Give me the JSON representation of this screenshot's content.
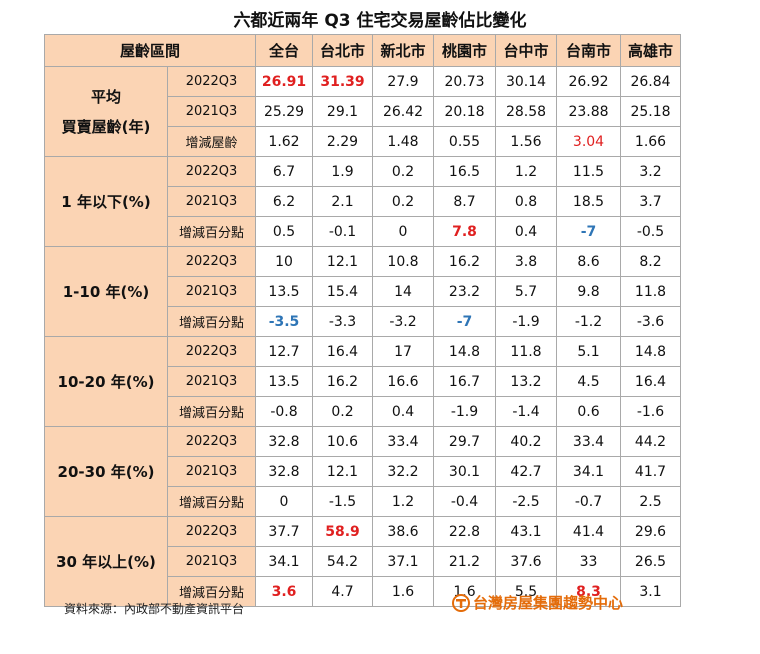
{
  "title": "六都近兩年 Q3 住宅交易屋齡佔比變化",
  "header": [
    "屋齡區間",
    "全台",
    "台北市",
    "新北市",
    "桃園市",
    "台中市",
    "台南市",
    "高雄市"
  ],
  "groups": [
    {
      "label_lines": [
        "平均",
        "買賣屋齡(年)"
      ],
      "rows": [
        {
          "label": "2022Q3",
          "values": [
            "26.91",
            "31.39",
            "27.9",
            "20.73",
            "30.14",
            "26.92",
            "26.84"
          ],
          "hl": [
            "red",
            "red",
            "",
            "",
            "",
            "",
            ""
          ]
        },
        {
          "label": "2021Q3",
          "values": [
            "25.29",
            "29.1",
            "26.42",
            "20.18",
            "28.58",
            "23.88",
            "25.18"
          ],
          "hl": [
            "",
            "",
            "",
            "",
            "",
            "",
            ""
          ]
        },
        {
          "label": "增減屋齡",
          "values": [
            "1.62",
            "2.29",
            "1.48",
            "0.55",
            "1.56",
            "3.04",
            "1.66"
          ],
          "hl": [
            "",
            "",
            "",
            "",
            "",
            "redn",
            ""
          ]
        }
      ]
    },
    {
      "label_lines": [
        "1 年以下(%)"
      ],
      "rows": [
        {
          "label": "2022Q3",
          "values": [
            "6.7",
            "1.9",
            "0.2",
            "16.5",
            "1.2",
            "11.5",
            "3.2"
          ],
          "hl": [
            "",
            "",
            "",
            "",
            "",
            "",
            ""
          ]
        },
        {
          "label": "2021Q3",
          "values": [
            "6.2",
            "2.1",
            "0.2",
            "8.7",
            "0.8",
            "18.5",
            "3.7"
          ],
          "hl": [
            "",
            "",
            "",
            "",
            "",
            "",
            ""
          ]
        },
        {
          "label": "增減百分點",
          "values": [
            "0.5",
            "-0.1",
            "0",
            "7.8",
            "0.4",
            "-7",
            "-0.5"
          ],
          "hl": [
            "",
            "",
            "",
            "red",
            "",
            "blue",
            ""
          ]
        }
      ]
    },
    {
      "label_lines": [
        "1-10 年(%)"
      ],
      "rows": [
        {
          "label": "2022Q3",
          "values": [
            "10",
            "12.1",
            "10.8",
            "16.2",
            "3.8",
            "8.6",
            "8.2"
          ],
          "hl": [
            "",
            "",
            "",
            "",
            "",
            "",
            ""
          ]
        },
        {
          "label": "2021Q3",
          "values": [
            "13.5",
            "15.4",
            "14",
            "23.2",
            "5.7",
            "9.8",
            "11.8"
          ],
          "hl": [
            "",
            "",
            "",
            "",
            "",
            "",
            ""
          ]
        },
        {
          "label": "增減百分點",
          "values": [
            "-3.5",
            "-3.3",
            "-3.2",
            "-7",
            "-1.9",
            "-1.2",
            "-3.6"
          ],
          "hl": [
            "blue",
            "",
            "",
            "blue",
            "",
            "",
            ""
          ]
        }
      ]
    },
    {
      "label_lines": [
        "10-20 年(%)"
      ],
      "rows": [
        {
          "label": "2022Q3",
          "values": [
            "12.7",
            "16.4",
            "17",
            "14.8",
            "11.8",
            "5.1",
            "14.8"
          ],
          "hl": [
            "",
            "",
            "",
            "",
            "",
            "",
            ""
          ]
        },
        {
          "label": "2021Q3",
          "values": [
            "13.5",
            "16.2",
            "16.6",
            "16.7",
            "13.2",
            "4.5",
            "16.4"
          ],
          "hl": [
            "",
            "",
            "",
            "",
            "",
            "",
            ""
          ]
        },
        {
          "label": "增減百分點",
          "values": [
            "-0.8",
            "0.2",
            "0.4",
            "-1.9",
            "-1.4",
            "0.6",
            "-1.6"
          ],
          "hl": [
            "",
            "",
            "",
            "",
            "",
            "",
            ""
          ]
        }
      ]
    },
    {
      "label_lines": [
        "20-30 年(%)"
      ],
      "rows": [
        {
          "label": "2022Q3",
          "values": [
            "32.8",
            "10.6",
            "33.4",
            "29.7",
            "40.2",
            "33.4",
            "44.2"
          ],
          "hl": [
            "",
            "",
            "",
            "",
            "",
            "",
            ""
          ]
        },
        {
          "label": "2021Q3",
          "values": [
            "32.8",
            "12.1",
            "32.2",
            "30.1",
            "42.7",
            "34.1",
            "41.7"
          ],
          "hl": [
            "",
            "",
            "",
            "",
            "",
            "",
            ""
          ]
        },
        {
          "label": "增減百分點",
          "values": [
            "0",
            "-1.5",
            "1.2",
            "-0.4",
            "-2.5",
            "-0.7",
            "2.5"
          ],
          "hl": [
            "",
            "",
            "",
            "",
            "",
            "",
            ""
          ]
        }
      ]
    },
    {
      "label_lines": [
        "30 年以上(%)"
      ],
      "rows": [
        {
          "label": "2022Q3",
          "values": [
            "37.7",
            "58.9",
            "38.6",
            "22.8",
            "43.1",
            "41.4",
            "29.6"
          ],
          "hl": [
            "",
            "red",
            "",
            "",
            "",
            "",
            ""
          ]
        },
        {
          "label": "2021Q3",
          "values": [
            "34.1",
            "54.2",
            "37.1",
            "21.2",
            "37.6",
            "33",
            "26.5"
          ],
          "hl": [
            "",
            "",
            "",
            "",
            "",
            "",
            ""
          ]
        },
        {
          "label": "增減百分點",
          "values": [
            "3.6",
            "4.7",
            "1.6",
            "1.6",
            "5.5",
            "8.3",
            "3.1"
          ],
          "hl": [
            "red",
            "",
            "",
            "",
            "",
            "red",
            ""
          ]
        }
      ]
    }
  ],
  "source": "資料來源：內政部不動產資訊平台",
  "brand": "台灣房屋集團趨勢中心",
  "colors": {
    "header_bg": "#fbd4b4",
    "highlight_red": "#e02020",
    "highlight_blue": "#2e75b6",
    "brand": "#e46c0a"
  }
}
